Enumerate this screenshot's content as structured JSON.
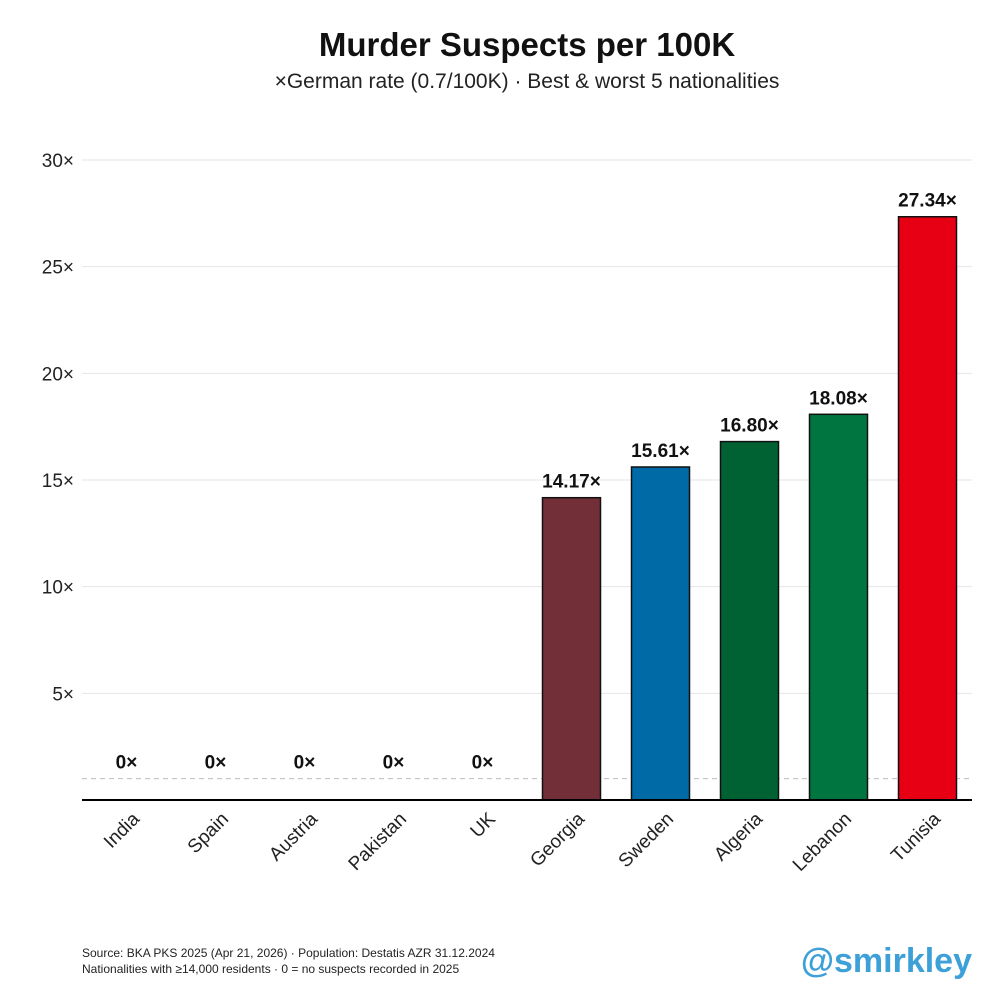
{
  "header": {
    "title": "Murder Suspects per 100K",
    "subtitle": "×German rate (0.7/100K) · Best & worst 5 nationalities"
  },
  "footer": {
    "source": "Source: BKA PKS 2025 (Apr 21, 2026) · Population: Destatis AZR 31.12.2024",
    "note": "Nationalities with ≥14,000 residents · 0 = no suspects recorded in 2025",
    "handle": "@smirkley"
  },
  "chart_data": {
    "type": "bar",
    "categories": [
      "India",
      "Spain",
      "Austria",
      "Pakistan",
      "UK",
      "Georgia",
      "Sweden",
      "Algeria",
      "Lebanon",
      "Tunisia"
    ],
    "values": [
      0,
      0,
      0,
      0,
      0,
      14.17,
      15.61,
      16.8,
      18.08,
      27.34
    ],
    "value_labels": [
      "0×",
      "0×",
      "0×",
      "0×",
      "0×",
      "14.17×",
      "15.61×",
      "16.80×",
      "18.08×",
      "27.34×"
    ],
    "colors": [
      "#222222",
      "#222222",
      "#222222",
      "#222222",
      "#222222",
      "#722f37",
      "#006aa7",
      "#006233",
      "#00753f",
      "#e70013"
    ],
    "ylim": [
      0,
      30
    ],
    "yticks": [
      5,
      10,
      15,
      20,
      25,
      30
    ],
    "ytick_labels": [
      "5×",
      "10×",
      "15×",
      "20×",
      "25×",
      "30×"
    ],
    "reference_line": 1,
    "grid": true,
    "xlabel": "",
    "ylabel": ""
  }
}
